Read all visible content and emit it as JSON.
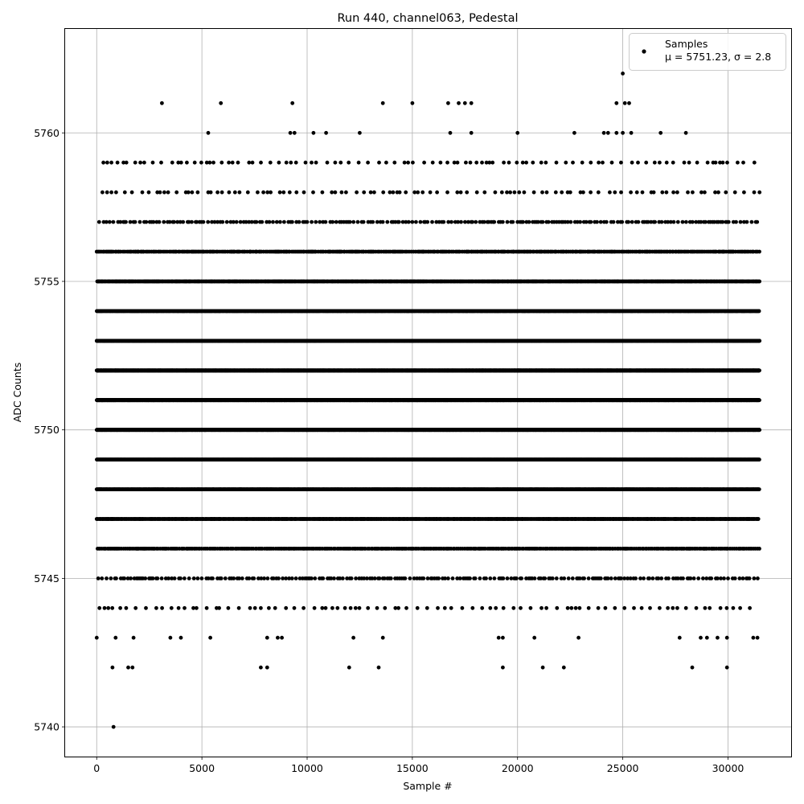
{
  "chart_data": {
    "type": "scatter",
    "title": "Run 440, channel063, Pedestal",
    "xlabel": "Sample #",
    "ylabel": "ADC Counts",
    "xlim": [
      -1500,
      33000
    ],
    "ylim": [
      5739,
      5763.5
    ],
    "x_ticks": [
      0,
      5000,
      10000,
      15000,
      20000,
      25000,
      30000
    ],
    "y_ticks": [
      5740,
      5745,
      5750,
      5755,
      5760
    ],
    "grid": true,
    "legend": {
      "position": "top-right",
      "marker_label": "Samples",
      "stats_label": "μ = 5751.23, σ = 2.8"
    },
    "marker_color": "#000000",
    "grid_color": "#b0b0b0",
    "n_samples": 31500,
    "mean": 5751.23,
    "sigma": 2.8,
    "dense_levels": [
      5744,
      5745,
      5746,
      5747,
      5748,
      5749,
      5750,
      5751,
      5752,
      5753,
      5754,
      5755,
      5756,
      5757,
      5758,
      5759
    ],
    "sparse_points": [
      [
        800,
        5740
      ],
      [
        750,
        5742
      ],
      [
        1500,
        5742
      ],
      [
        1700,
        5742
      ],
      [
        7800,
        5742
      ],
      [
        8100,
        5742
      ],
      [
        12000,
        5742
      ],
      [
        13400,
        5742
      ],
      [
        19300,
        5742
      ],
      [
        21200,
        5742
      ],
      [
        22200,
        5742
      ],
      [
        28300,
        5742
      ],
      [
        29950,
        5742
      ],
      [
        0,
        5743
      ],
      [
        900,
        5743
      ],
      [
        1750,
        5743
      ],
      [
        3500,
        5743
      ],
      [
        4000,
        5743
      ],
      [
        5400,
        5743
      ],
      [
        8100,
        5743
      ],
      [
        8600,
        5743
      ],
      [
        8800,
        5743
      ],
      [
        12200,
        5743
      ],
      [
        13600,
        5743
      ],
      [
        19100,
        5743
      ],
      [
        19300,
        5743
      ],
      [
        20800,
        5743
      ],
      [
        22900,
        5743
      ],
      [
        27700,
        5743
      ],
      [
        28700,
        5743
      ],
      [
        29000,
        5743
      ],
      [
        29500,
        5743
      ],
      [
        29950,
        5743
      ],
      [
        31200,
        5743
      ],
      [
        31400,
        5743
      ],
      [
        3100,
        5761
      ],
      [
        5900,
        5761
      ],
      [
        9300,
        5761
      ],
      [
        13600,
        5761
      ],
      [
        15000,
        5761
      ],
      [
        16700,
        5761
      ],
      [
        17200,
        5761
      ],
      [
        17500,
        5761
      ],
      [
        17800,
        5761
      ],
      [
        24700,
        5761
      ],
      [
        25100,
        5761
      ],
      [
        25300,
        5761
      ],
      [
        25000,
        5762
      ],
      [
        5300,
        5760
      ],
      [
        9200,
        5760
      ],
      [
        9400,
        5760
      ],
      [
        10300,
        5760
      ],
      [
        10900,
        5760
      ],
      [
        12500,
        5760
      ],
      [
        16800,
        5760
      ],
      [
        17800,
        5760
      ],
      [
        20000,
        5760
      ],
      [
        22700,
        5760
      ],
      [
        24100,
        5760
      ],
      [
        24300,
        5760
      ],
      [
        24700,
        5760
      ],
      [
        25000,
        5760
      ],
      [
        25400,
        5760
      ],
      [
        26800,
        5760
      ],
      [
        28000,
        5760
      ]
    ]
  }
}
